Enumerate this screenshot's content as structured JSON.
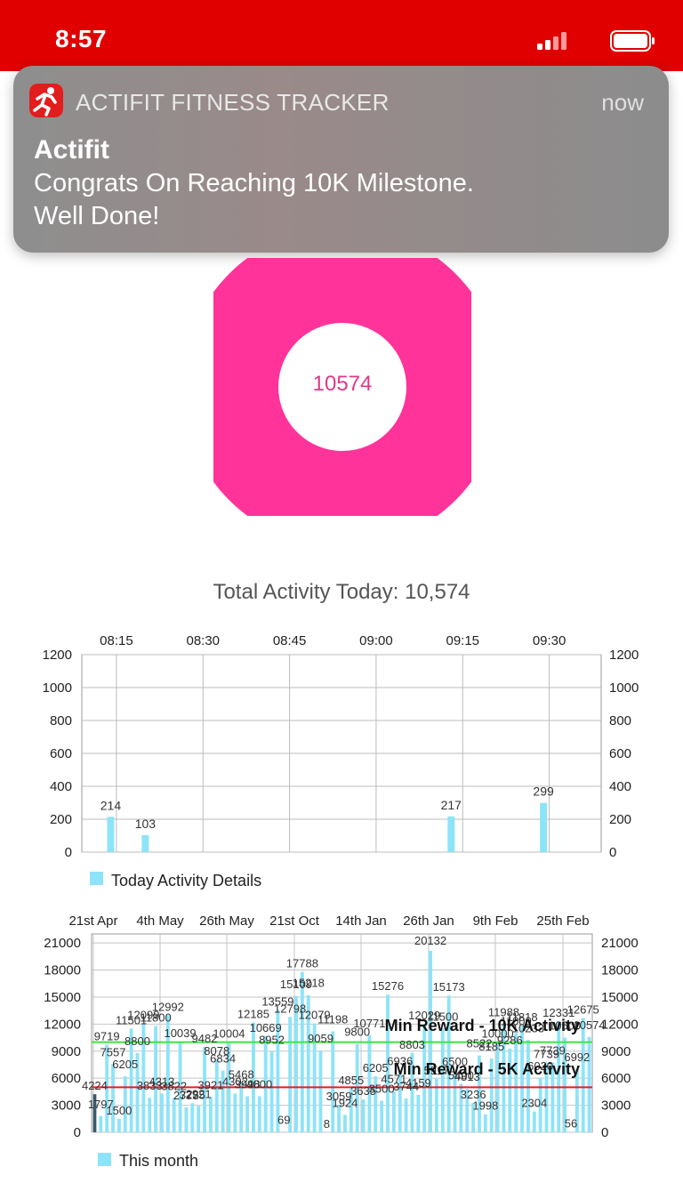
{
  "status_bar": {
    "time": "8:57",
    "bg_color": "#e00000"
  },
  "notification": {
    "app_icon": "runner-icon",
    "app_name": "ACTIFIT FITNESS TRACKER",
    "time": "now",
    "title": "Actifit",
    "body_line1": "Congrats On Reaching 10K Milestone.",
    "body_line2": "Well Done!"
  },
  "donut": {
    "value": "10574",
    "color": "#ff3399"
  },
  "total_activity": "Total Activity Today: 10,574",
  "chart_data": [
    {
      "type": "bar",
      "x_ticks": [
        "08:15",
        "08:30",
        "08:45",
        "09:00",
        "09:15",
        "09:30"
      ],
      "y_ticks": [
        "0",
        "200",
        "400",
        "600",
        "800",
        "1000",
        "1200"
      ],
      "ylim": [
        0,
        1200
      ],
      "x_range_minutes": [
        8.05,
        9.667
      ],
      "bars": [
        {
          "time": "08:14",
          "value": 214
        },
        {
          "time": "08:20",
          "value": 103
        },
        {
          "time": "09:13",
          "value": 217
        },
        {
          "time": "09:29",
          "value": 299
        }
      ],
      "legend": "Today Activity Details",
      "legend_placement": "bottom-left",
      "color": "#8de4f8"
    },
    {
      "type": "bar",
      "x_ticks": [
        "21st Apr",
        "4th May",
        "26th May",
        "21st Oct",
        "14th Jan",
        "26th Jan",
        "9th Feb",
        "25th Feb"
      ],
      "y_ticks": [
        "0",
        "3000",
        "6000",
        "9000",
        "12000",
        "15000",
        "18000",
        "21000"
      ],
      "ylim": [
        0,
        22000
      ],
      "values": [
        4224,
        1797,
        9719,
        7557,
        1500,
        6205,
        11501,
        8800,
        12099,
        3833,
        11800,
        4313,
        12992,
        3822,
        10039,
        2775,
        3225,
        2921,
        9482,
        3921,
        8078,
        6834,
        10004,
        4302,
        5468,
        3998,
        12185,
        4000,
        10669,
        8952,
        13559,
        69,
        12798,
        15109,
        17788,
        15218,
        12079,
        9059,
        8,
        11198,
        3059,
        1924,
        4855,
        9800,
        3635,
        10771,
        6205,
        3500,
        15276,
        4571,
        6936,
        3744,
        8803,
        4159,
        12029,
        20132,
        5917,
        11500,
        15173,
        6500,
        5400,
        4813,
        3236,
        8522,
        1998,
        8185,
        10000,
        11988,
        9286,
        11000,
        11818,
        10233,
        2304,
        6020,
        7739,
        7739,
        12331,
        10500,
        56,
        6992,
        12675,
        10574
      ],
      "ref_lines": [
        {
          "label": "Min Reward - 10K Activity",
          "value": 10000,
          "color": "#33ee33"
        },
        {
          "label": "Min Reward - 5K Activity",
          "value": 5000,
          "color": "#e02020"
        }
      ],
      "legend": "This month",
      "legend_placement": "bottom-left",
      "color": "#8de4f8"
    }
  ]
}
